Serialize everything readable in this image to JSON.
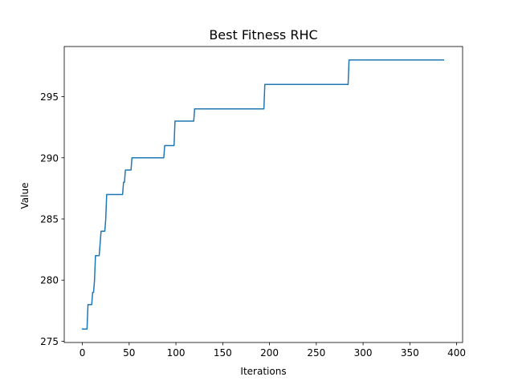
{
  "chart_data": {
    "type": "line",
    "title": "Best Fitness RHC",
    "xlabel": "Iterations",
    "ylabel": "Value",
    "xlim": [
      -19.35,
      406.35
    ],
    "ylim": [
      274.9,
      299.1
    ],
    "xticks": [
      0,
      50,
      100,
      150,
      200,
      250,
      300,
      350,
      400
    ],
    "yticks": [
      275,
      280,
      285,
      290,
      295
    ],
    "grid": false,
    "legend": "none",
    "color": "#1f77b4",
    "series": [
      {
        "x": [
          0,
          5,
          6,
          10,
          11,
          12,
          13,
          14,
          15,
          18,
          19,
          20,
          24,
          25,
          26,
          43,
          44,
          45,
          46,
          47,
          52,
          53,
          54,
          55,
          87,
          88,
          98,
          99,
          100,
          119,
          120,
          121,
          194,
          195,
          196,
          284,
          285,
          286,
          386
        ],
        "y": [
          276,
          276,
          278,
          278,
          279,
          279,
          280,
          282,
          282,
          282,
          283,
          284,
          284,
          285,
          287,
          287,
          288,
          288,
          289,
          289,
          289,
          290,
          290,
          290,
          290,
          291,
          291,
          293,
          293,
          293,
          294,
          294,
          294,
          296,
          296,
          296,
          298,
          298,
          298
        ]
      }
    ]
  }
}
